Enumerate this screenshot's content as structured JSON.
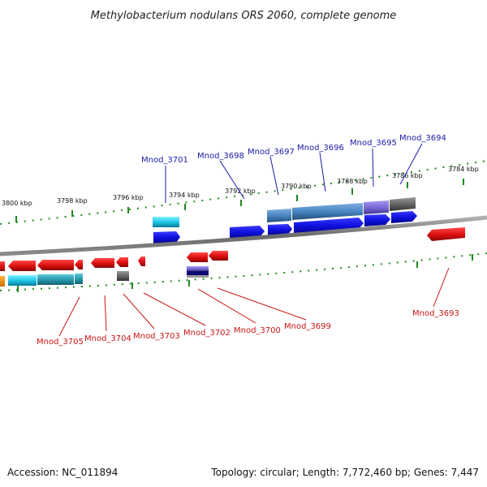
{
  "title": "Methylobacterium nodulans ORS 2060, complete genome",
  "footer": {
    "accession": "Accession: NC_011894",
    "topology": "Topology: circular; Length: 7,772,460 bp; Genes: 7,447"
  },
  "colors": {
    "backbone": "#7a7a7a",
    "tick": "#1f8a1f",
    "forward_gene": "#1010e0",
    "reverse_gene": "#e01010",
    "label_top": "#1a1aa8",
    "label_bottom": "#c81414"
  },
  "scale_labels": [
    "3800 kbp",
    "3798 kbp",
    "3796 kbp",
    "3794 kbp",
    "3792 kbp",
    "3790 kbp",
    "3788 kbp",
    "3786 kbp",
    "3784 kbp"
  ],
  "genes_top": [
    "Mnod_3701",
    "Mnod_3698",
    "Mnod_3697",
    "Mnod_3696",
    "Mnod_3695",
    "Mnod_3694"
  ],
  "genes_bottom": [
    "Mnod_3705",
    "Mnod_3704",
    "Mnod_3703",
    "Mnod_3702",
    "Mnod_3700",
    "Mnod_3699",
    "Mnod_3693"
  ]
}
